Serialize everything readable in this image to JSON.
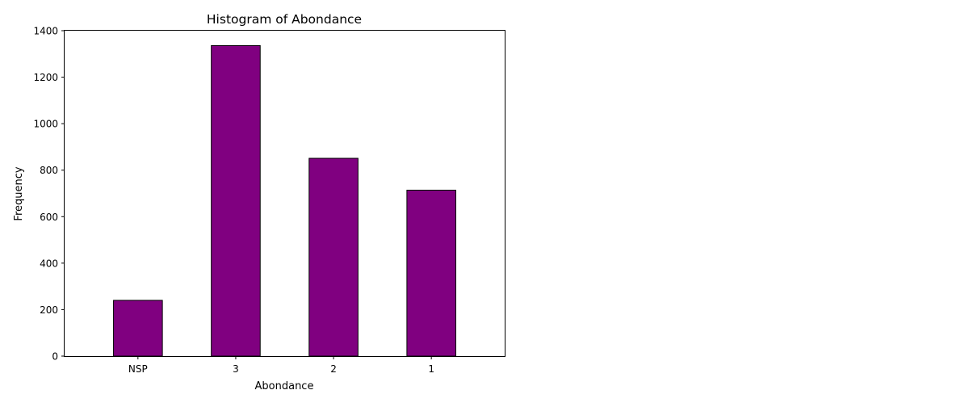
{
  "chart_data": {
    "type": "bar",
    "title": "Histogram of Abondance",
    "xlabel": "Abondance",
    "ylabel": "Frequency",
    "categories": [
      "NSP",
      "3",
      "2",
      "1"
    ],
    "values": [
      240,
      1336,
      851,
      714
    ],
    "ylim": [
      0,
      1400
    ],
    "yticks": [
      0,
      200,
      400,
      600,
      800,
      1000,
      1200,
      1400
    ],
    "ytick_labels": [
      "0",
      "200",
      "400",
      "600",
      "800",
      "1000",
      "1200",
      "1400"
    ],
    "bar_color": "#800080",
    "edge_color": "#000000",
    "grid": false,
    "legend": "none"
  }
}
